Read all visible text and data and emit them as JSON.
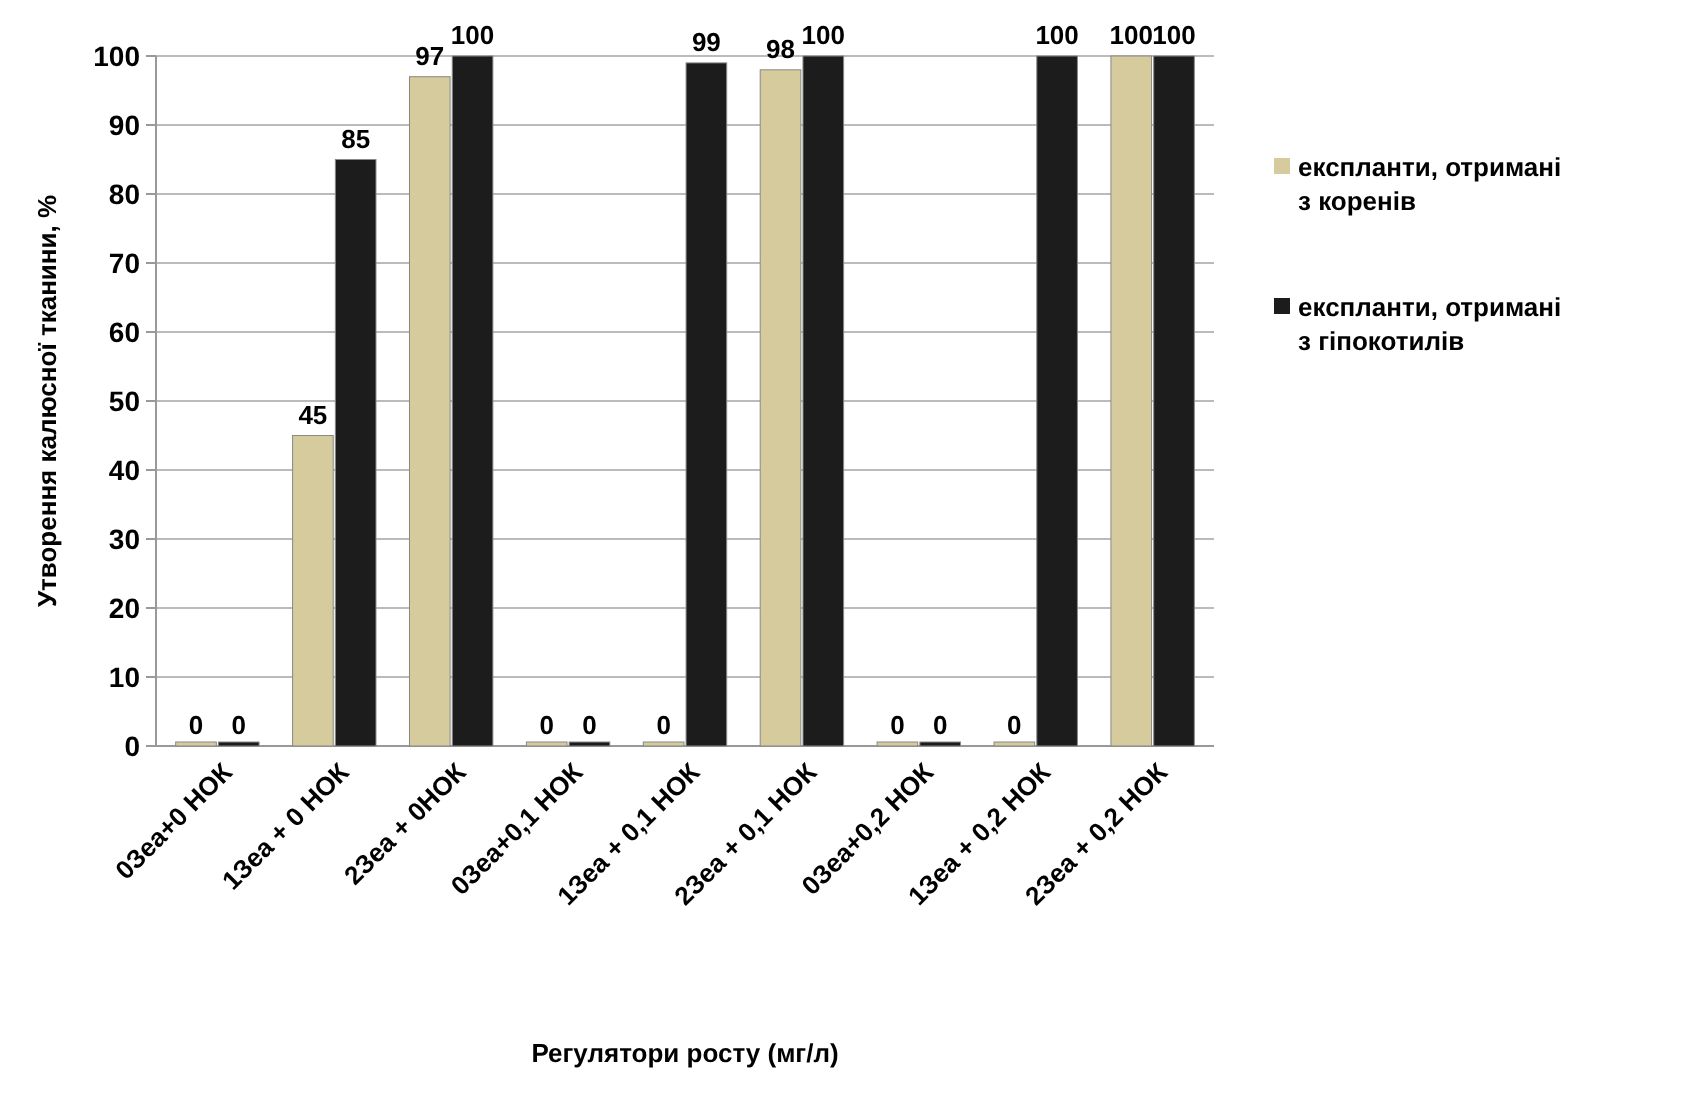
{
  "chart_data": {
    "type": "bar",
    "xlabel": "Регулятори росту (мг/л)",
    "ylabel": "Утворення калюсної тканини, %",
    "categories": [
      "0Зеа+0 НОК",
      "1Зеа + 0 НОК",
      "2Зеа + 0НОК",
      "0Зеа+0,1 НОК",
      "1Зеа + 0,1 НОК",
      "2Зеа + 0,1 НОК",
      "0Зеа+0,2 НОК",
      "1Зеа + 0,2 НОК",
      "2Зеа + 0,2 НОК"
    ],
    "series": [
      {
        "name": "експланти, отримані з коренів",
        "color": "#d6cb9c",
        "values": [
          0,
          45,
          97,
          0,
          0,
          98,
          0,
          0,
          100
        ]
      },
      {
        "name": "експланти, отримані з гіпокотилів",
        "color": "#1c1c1c",
        "values": [
          0,
          85,
          100,
          0,
          99,
          100,
          0,
          100,
          100
        ]
      }
    ],
    "ylim": [
      0,
      100
    ],
    "yticks": [
      0,
      10,
      20,
      30,
      40,
      50,
      60,
      70,
      80,
      90,
      100
    ],
    "grid": "y",
    "legend": "right",
    "data_labels": true
  }
}
